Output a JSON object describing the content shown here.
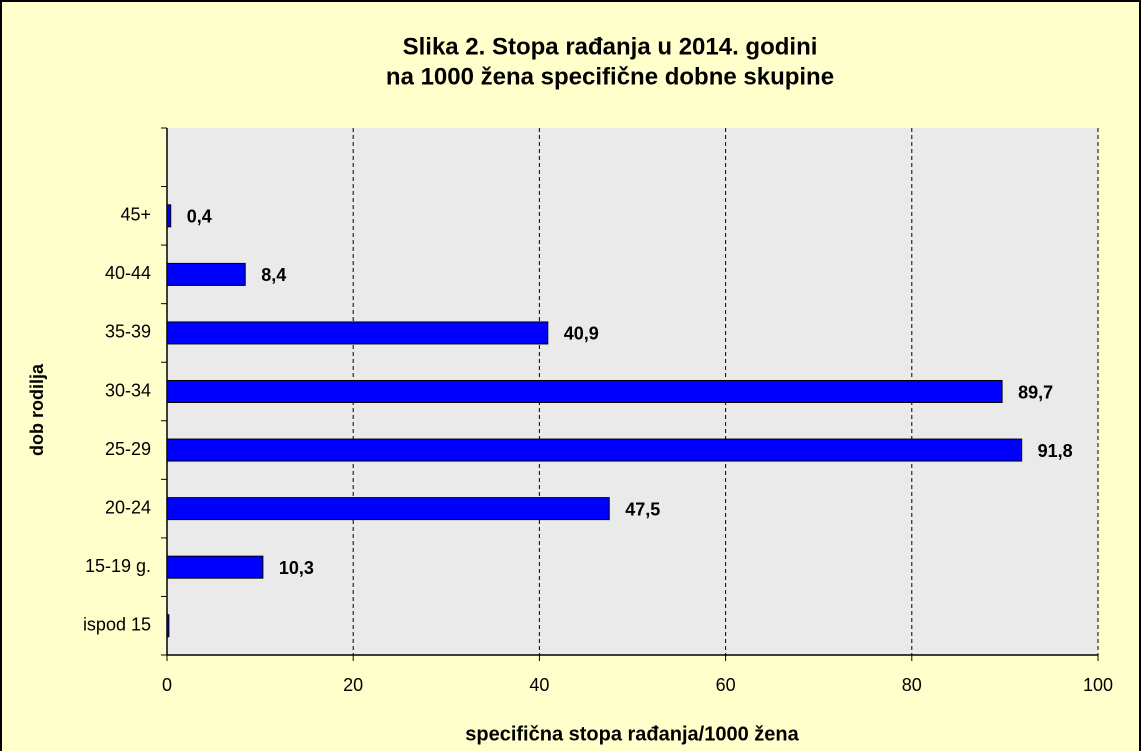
{
  "chart_data": {
    "type": "hbar",
    "title": [
      "Slika 2. Stopa rađanja u 2014. godini",
      "na 1000 žena specifične dobne skupine"
    ],
    "x_label": "specifična stopa rađanja/1000  žena",
    "y_label": "dob rodilja",
    "categories": [
      null,
      "45+",
      "40-44",
      "35-39",
      "30-34",
      "25-29",
      "20-24",
      "15-19 g.",
      "ispod 15"
    ],
    "values": [
      null,
      0.4,
      8.4,
      40.9,
      89.7,
      91.8,
      47.5,
      10.3,
      0.2
    ],
    "value_labels": [
      null,
      "0,4",
      "8,4",
      "40,9",
      "89,7",
      "91,8",
      "47,5",
      "10,3",
      null
    ],
    "color": "#0000ff",
    "xlim": [
      0,
      100
    ],
    "xticks": [
      0,
      20,
      40,
      60,
      80,
      100
    ],
    "grid": true
  }
}
